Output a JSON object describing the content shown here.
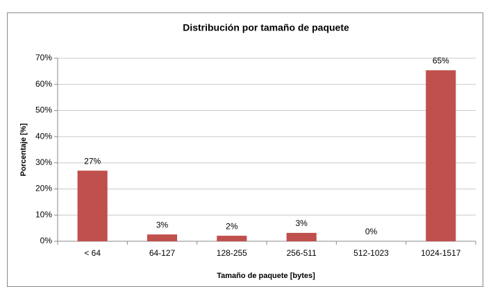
{
  "chart_data": {
    "type": "bar",
    "title": "Distribución por tamaño de paquete",
    "x_label": "Tamaño de paquete [bytes]",
    "y_label": "Porcentaje [%]",
    "categories": [
      "< 64",
      "64-127",
      "128-255",
      "256-511",
      "512-1023",
      "1024-1517"
    ],
    "values": [
      27,
      2.6,
      2.1,
      3.2,
      0,
      65.4
    ],
    "value_labels": [
      "27%",
      "3%",
      "2%",
      "3%",
      "0%",
      "65%"
    ],
    "color": "#c0504d",
    "ylim": [
      0,
      70
    ],
    "yticks": [
      {
        "value": 0,
        "label": "0%"
      },
      {
        "value": 10,
        "label": "10%"
      },
      {
        "value": 20,
        "label": "20%"
      },
      {
        "value": 30,
        "label": "30%"
      },
      {
        "value": 40,
        "label": "40%"
      },
      {
        "value": 50,
        "label": "50%"
      },
      {
        "value": 60,
        "label": "60%"
      },
      {
        "value": 70,
        "label": "70%"
      }
    ],
    "grid": true
  }
}
